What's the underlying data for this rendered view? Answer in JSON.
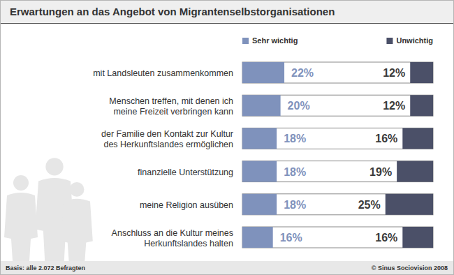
{
  "chart_data": {
    "type": "bar",
    "orientation": "horizontal",
    "title": "Erwartungen an das Angebot von Migrantenselbstorganisationen",
    "categories": [
      "mit Landsleuten zusammenkommen",
      "Menschen treffen, mit denen ich\nmeine Freizeit verbringen kann",
      "der Familie den Kontakt zur Kultur\ndes Herkunftslandes ermöglichen",
      "finanzielle Unterstützung",
      "meine Religion ausüben",
      "Anschluss an die Kultur meines\nHerkunftslandes halten"
    ],
    "series": [
      {
        "name": "Sehr wichtig",
        "color": "#7f92bc",
        "values": [
          22,
          20,
          18,
          18,
          18,
          16
        ],
        "value_labels": [
          "22%",
          "20%",
          "18%",
          "18%",
          "18%",
          "16%"
        ]
      },
      {
        "name": "Unwichtig",
        "color": "#4b5068",
        "values": [
          12,
          12,
          16,
          19,
          25,
          16
        ],
        "value_labels": [
          "12%",
          "12%",
          "16%",
          "19%",
          "25%",
          "16%"
        ]
      }
    ],
    "xlim": [
      0,
      100
    ],
    "tick_labels": false,
    "data_labels": true,
    "legend": "top",
    "footnote": "Basis: alle 2.072 Befragten",
    "source": "© Sinus Sociovision 2008"
  }
}
